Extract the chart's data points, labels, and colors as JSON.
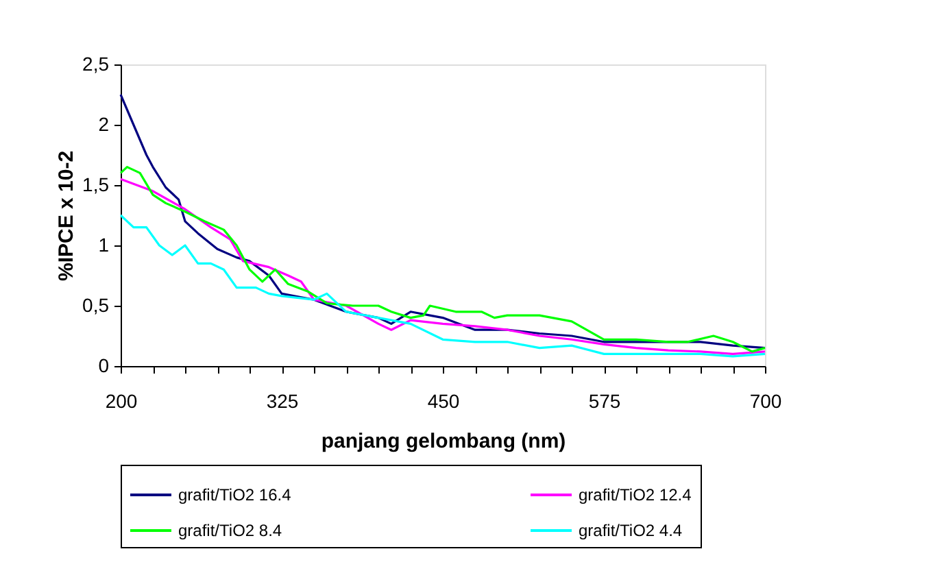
{
  "chart_data": {
    "type": "line",
    "xlabel": "panjang gelombang (nm)",
    "ylabel": "%IPCE x 10-2",
    "xlim": [
      200,
      700
    ],
    "ylim": [
      0,
      2.5
    ],
    "xticks": [
      200,
      {
        "value": 225,
        "label": null
      },
      {
        "value": 250,
        "label": null
      },
      {
        "value": 275,
        "label": null
      },
      {
        "value": 300,
        "label": null
      },
      325,
      {
        "value": 350,
        "label": null
      },
      {
        "value": 375,
        "label": null
      },
      {
        "value": 400,
        "label": null
      },
      {
        "value": 425,
        "label": null
      },
      450,
      {
        "value": 475,
        "label": null
      },
      {
        "value": 500,
        "label": null
      },
      {
        "value": 525,
        "label": null
      },
      {
        "value": 550,
        "label": null
      },
      575,
      {
        "value": 600,
        "label": null
      },
      {
        "value": 625,
        "label": null
      },
      {
        "value": 650,
        "label": null
      },
      {
        "value": 675,
        "label": null
      },
      700
    ],
    "yticks": [
      0,
      {
        "value": 0.5,
        "label": "0,5"
      },
      1,
      {
        "value": 1.5,
        "label": "1,5"
      },
      2,
      {
        "value": 2.5,
        "label": "2,5"
      }
    ],
    "grid": false,
    "legend": "bottom",
    "marker": "none",
    "line_style": "solid",
    "series": [
      {
        "name": "grafit/TiO2 16.4",
        "color": "#000080",
        "x": [
          200,
          210,
          220,
          225,
          235,
          245,
          250,
          260,
          275,
          290,
          300,
          315,
          325,
          350,
          375,
          400,
          410,
          425,
          440,
          450,
          475,
          500,
          525,
          550,
          575,
          600,
          625,
          650,
          675,
          700
        ],
        "values": [
          2.25,
          2.0,
          1.75,
          1.65,
          1.48,
          1.38,
          1.2,
          1.1,
          0.97,
          0.9,
          0.87,
          0.75,
          0.6,
          0.55,
          0.45,
          0.4,
          0.35,
          0.45,
          0.42,
          0.4,
          0.3,
          0.3,
          0.27,
          0.25,
          0.2,
          0.2,
          0.2,
          0.2,
          0.17,
          0.15
        ]
      },
      {
        "name": "grafit/TiO2 12.4",
        "color": "#ff00ff",
        "x": [
          200,
          225,
          250,
          270,
          285,
          295,
          315,
          330,
          340,
          350,
          375,
          400,
          410,
          425,
          450,
          475,
          500,
          525,
          550,
          575,
          600,
          625,
          650,
          675,
          700
        ],
        "values": [
          1.55,
          1.45,
          1.3,
          1.15,
          1.05,
          0.87,
          0.82,
          0.75,
          0.7,
          0.55,
          0.5,
          0.35,
          0.3,
          0.38,
          0.35,
          0.33,
          0.3,
          0.25,
          0.22,
          0.18,
          0.15,
          0.13,
          0.12,
          0.1,
          0.12
        ]
      },
      {
        "name": "grafit/TiO2 8.4",
        "color": "#00ff00",
        "x": [
          200,
          205,
          215,
          225,
          235,
          250,
          265,
          280,
          290,
          300,
          310,
          320,
          330,
          345,
          360,
          380,
          400,
          410,
          425,
          435,
          440,
          460,
          480,
          490,
          500,
          525,
          550,
          575,
          600,
          625,
          640,
          660,
          675,
          690,
          700
        ],
        "values": [
          1.6,
          1.65,
          1.6,
          1.42,
          1.35,
          1.28,
          1.2,
          1.13,
          1.0,
          0.8,
          0.7,
          0.8,
          0.68,
          0.62,
          0.52,
          0.5,
          0.5,
          0.45,
          0.4,
          0.42,
          0.5,
          0.45,
          0.45,
          0.4,
          0.42,
          0.42,
          0.37,
          0.22,
          0.22,
          0.2,
          0.2,
          0.25,
          0.2,
          0.12,
          0.15
        ]
      },
      {
        "name": "grafit/TiO2 4.4",
        "color": "#00ffff",
        "x": [
          200,
          210,
          220,
          230,
          240,
          250,
          260,
          270,
          280,
          290,
          305,
          315,
          325,
          350,
          360,
          375,
          400,
          425,
          450,
          475,
          500,
          525,
          550,
          575,
          600,
          625,
          650,
          675,
          700
        ],
        "values": [
          1.25,
          1.15,
          1.15,
          1.0,
          0.92,
          1.0,
          0.85,
          0.85,
          0.8,
          0.65,
          0.65,
          0.6,
          0.58,
          0.55,
          0.6,
          0.45,
          0.4,
          0.35,
          0.22,
          0.2,
          0.2,
          0.15,
          0.17,
          0.1,
          0.1,
          0.1,
          0.1,
          0.08,
          0.1
        ]
      }
    ]
  }
}
